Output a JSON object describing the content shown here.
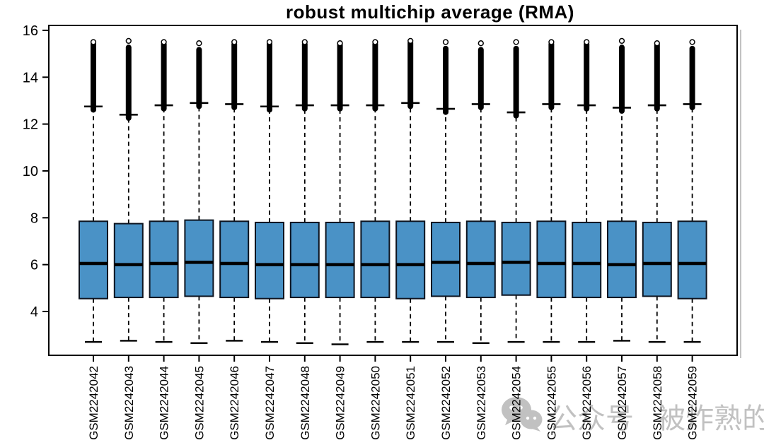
{
  "chart_data": {
    "type": "boxplot",
    "title": "robust multichip average (RMA)",
    "xlabel": "",
    "ylabel": "",
    "ylim": [
      2.13,
      16.21
    ],
    "yticks": [
      4,
      6,
      8,
      10,
      12,
      14,
      16
    ],
    "grid": false,
    "legend": "none",
    "box_fill_color": "#4a92c6",
    "box_border_color": "#0d1420",
    "whisker_color": "#000000",
    "outlier_color": "#000000",
    "categories": [
      "GSM2242042",
      "GSM2242043",
      "GSM2242044",
      "GSM2242045",
      "GSM2242046",
      "GSM2242047",
      "GSM2242048",
      "GSM2242049",
      "GSM2242050",
      "GSM2242051",
      "GSM2242052",
      "GSM2242053",
      "GSM2242054",
      "GSM2242055",
      "GSM2242056",
      "GSM2242057",
      "GSM2242058",
      "GSM2242059"
    ],
    "series": [
      {
        "name": "GSM2242042",
        "whisker_low": 2.7,
        "q1": 4.55,
        "median": 6.05,
        "q3": 7.85,
        "whisker_high": 12.75,
        "outlier_max": 15.5,
        "gap_circle": false
      },
      {
        "name": "GSM2242043",
        "whisker_low": 2.75,
        "q1": 4.6,
        "median": 6.0,
        "q3": 7.75,
        "whisker_high": 12.4,
        "outlier_max": 15.55,
        "gap_circle": true
      },
      {
        "name": "GSM2242044",
        "whisker_low": 2.7,
        "q1": 4.6,
        "median": 6.05,
        "q3": 7.85,
        "whisker_high": 12.8,
        "outlier_max": 15.5,
        "gap_circle": false
      },
      {
        "name": "GSM2242045",
        "whisker_low": 2.65,
        "q1": 4.65,
        "median": 6.1,
        "q3": 7.9,
        "whisker_high": 12.9,
        "outlier_max": 15.45,
        "gap_circle": true
      },
      {
        "name": "GSM2242046",
        "whisker_low": 2.75,
        "q1": 4.6,
        "median": 6.05,
        "q3": 7.85,
        "whisker_high": 12.85,
        "outlier_max": 15.5,
        "gap_circle": false
      },
      {
        "name": "GSM2242047",
        "whisker_low": 2.7,
        "q1": 4.55,
        "median": 6.0,
        "q3": 7.8,
        "whisker_high": 12.75,
        "outlier_max": 15.5,
        "gap_circle": false
      },
      {
        "name": "GSM2242048",
        "whisker_low": 2.65,
        "q1": 4.6,
        "median": 6.0,
        "q3": 7.8,
        "whisker_high": 12.8,
        "outlier_max": 15.5,
        "gap_circle": false
      },
      {
        "name": "GSM2242049",
        "whisker_low": 2.6,
        "q1": 4.6,
        "median": 6.0,
        "q3": 7.8,
        "whisker_high": 12.8,
        "outlier_max": 15.45,
        "gap_circle": false
      },
      {
        "name": "GSM2242050",
        "whisker_low": 2.7,
        "q1": 4.6,
        "median": 6.0,
        "q3": 7.85,
        "whisker_high": 12.8,
        "outlier_max": 15.5,
        "gap_circle": false
      },
      {
        "name": "GSM2242051",
        "whisker_low": 2.7,
        "q1": 4.55,
        "median": 6.0,
        "q3": 7.85,
        "whisker_high": 12.9,
        "outlier_max": 15.55,
        "gap_circle": false
      },
      {
        "name": "GSM2242052",
        "whisker_low": 2.7,
        "q1": 4.65,
        "median": 6.1,
        "q3": 7.8,
        "whisker_high": 12.65,
        "outlier_max": 15.5,
        "gap_circle": true
      },
      {
        "name": "GSM2242053",
        "whisker_low": 2.65,
        "q1": 4.6,
        "median": 6.05,
        "q3": 7.85,
        "whisker_high": 12.85,
        "outlier_max": 15.45,
        "gap_circle": true
      },
      {
        "name": "GSM2242054",
        "whisker_low": 2.7,
        "q1": 4.7,
        "median": 6.1,
        "q3": 7.8,
        "whisker_high": 12.5,
        "outlier_max": 15.5,
        "gap_circle": true
      },
      {
        "name": "GSM2242055",
        "whisker_low": 2.7,
        "q1": 4.6,
        "median": 6.05,
        "q3": 7.85,
        "whisker_high": 12.85,
        "outlier_max": 15.5,
        "gap_circle": false
      },
      {
        "name": "GSM2242056",
        "whisker_low": 2.7,
        "q1": 4.6,
        "median": 6.05,
        "q3": 7.8,
        "whisker_high": 12.8,
        "outlier_max": 15.5,
        "gap_circle": false
      },
      {
        "name": "GSM2242057",
        "whisker_low": 2.75,
        "q1": 4.6,
        "median": 6.0,
        "q3": 7.85,
        "whisker_high": 12.7,
        "outlier_max": 15.55,
        "gap_circle": true
      },
      {
        "name": "GSM2242058",
        "whisker_low": 2.7,
        "q1": 4.65,
        "median": 6.05,
        "q3": 7.8,
        "whisker_high": 12.8,
        "outlier_max": 15.45,
        "gap_circle": false
      },
      {
        "name": "GSM2242059",
        "whisker_low": 2.7,
        "q1": 4.55,
        "median": 6.05,
        "q3": 7.85,
        "whisker_high": 12.85,
        "outlier_max": 15.5,
        "gap_circle": true
      }
    ]
  },
  "watermark": {
    "icon": "wechat-icon",
    "text": "公众号 被炸熟的虾",
    "color": "#8f8f8f"
  }
}
